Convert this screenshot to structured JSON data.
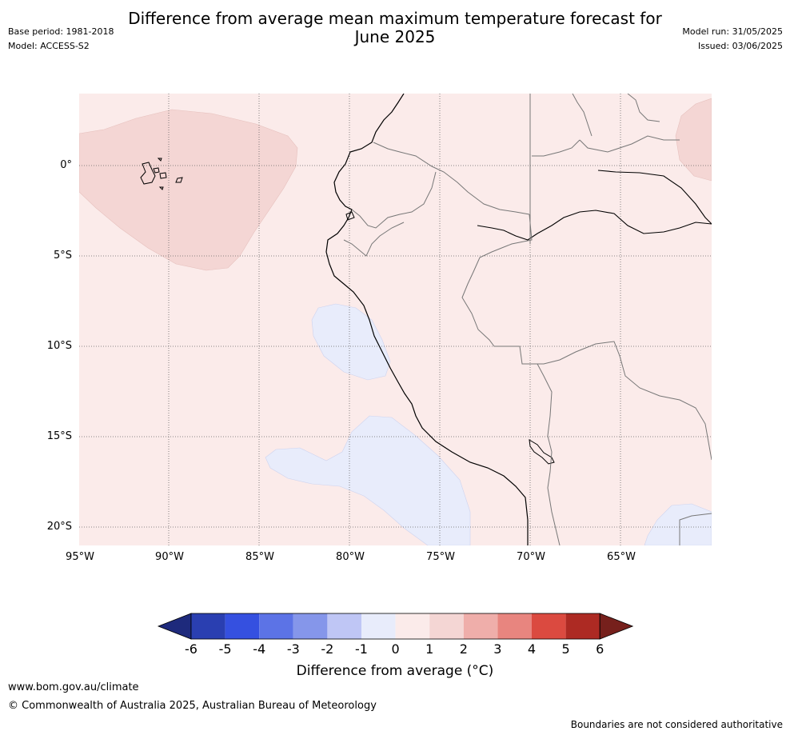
{
  "header": {
    "title_line1": "Difference from average mean maximum temperature forecast for",
    "title_line2": "June 2025",
    "base_period": "Base period: 1981-2018",
    "model": "Model: ACCESS-S2",
    "model_run": "Model run: 31/05/2025",
    "issued": "Issued: 03/06/2025"
  },
  "map": {
    "lat_labels": [
      "0°",
      "5°S",
      "10°S",
      "15°S",
      "20°S"
    ],
    "lon_labels": [
      "95°W",
      "90°W",
      "85°W",
      "80°W",
      "75°W",
      "70°W",
      "65°W"
    ],
    "background_anomaly_color": "#fbebea",
    "warm_patch_color": "#f4d6d4",
    "cool_patch_color": "#e8ecfb"
  },
  "colorbar": {
    "labels": [
      "-6",
      "-5",
      "-4",
      "-3",
      "-2",
      "-1",
      "0",
      "1",
      "2",
      "3",
      "4",
      "5",
      "6"
    ],
    "colors": [
      "#1e2a7c",
      "#2a3fb1",
      "#3550e0",
      "#5c73e6",
      "#8596ea",
      "#bfc6f5",
      "#e8ecfb",
      "#fbebea",
      "#f4d6d4",
      "#efaeaa",
      "#e8857f",
      "#db4a40",
      "#ad2a23",
      "#76201c"
    ],
    "title": "Difference from average (°C)"
  },
  "footer": {
    "url": "www.bom.gov.au/climate",
    "copyright": "© Commonwealth of Australia 2025, Australian Bureau of Meteorology",
    "note": "Boundaries are not considered authoritative"
  }
}
